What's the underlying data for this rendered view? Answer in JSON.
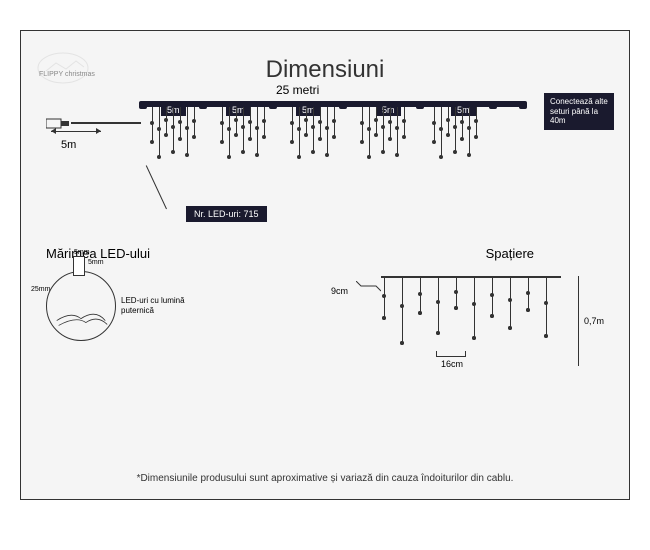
{
  "title": "Dimensiuni",
  "logo_text": "FLIPPY\nchristmas",
  "total_length": "25 metri",
  "segments": [
    "5m",
    "5m",
    "5m",
    "5m",
    "5m"
  ],
  "segment_positions": [
    140,
    205,
    275,
    355,
    430
  ],
  "connector_positions": [
    118,
    178,
    248,
    318,
    395,
    468,
    498
  ],
  "cable_length": "5m",
  "connect_text": "Conectează alte seturi până la 40m",
  "led_count_label": "Nr. LED-uri: 715",
  "led_size": {
    "title": "Mărimea LED-ului",
    "width": "5mm",
    "height": "5mm",
    "base": "25mm",
    "description": "LED-uri cu lumină puternică"
  },
  "spacing": {
    "title": "Spațiere",
    "horizontal_small": "9cm",
    "horizontal": "16cm",
    "vertical": "0,7m"
  },
  "footnote": "*Dimensiunile produsului sunt aproximative și variază din cauza îndoiturilor din cablu.",
  "colors": {
    "dark": "#1a1a2e",
    "bg": "#f5f5f5",
    "line": "#333333"
  },
  "icicle_heights": [
    35,
    50,
    28,
    45,
    32,
    48,
    30
  ],
  "spacing_icicle_heights": [
    40,
    65,
    35,
    55,
    30,
    60,
    38,
    50,
    32,
    58
  ]
}
